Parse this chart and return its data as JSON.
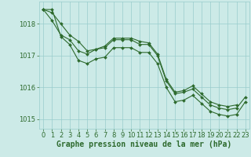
{
  "background_color": "#cceae7",
  "plot_bg_color": "#cceae7",
  "grid_color": "#99cccc",
  "line_color": "#2d6a2d",
  "marker_color": "#2d6a2d",
  "xlabel": "Graphe pression niveau de la mer (hPa)",
  "xlabel_fontsize": 7,
  "tick_fontsize": 6,
  "ylim": [
    1014.7,
    1018.7
  ],
  "xlim": [
    -0.5,
    23.5
  ],
  "yticks": [
    1015,
    1016,
    1017,
    1018
  ],
  "xticks": [
    0,
    1,
    2,
    3,
    4,
    5,
    6,
    7,
    8,
    9,
    10,
    11,
    12,
    13,
    14,
    15,
    16,
    17,
    18,
    19,
    20,
    21,
    22,
    23
  ],
  "series1_x": [
    0,
    1,
    2,
    3,
    4,
    5,
    6,
    7,
    8,
    9,
    10,
    11,
    12,
    13,
    14,
    15,
    16,
    17,
    18,
    19,
    20,
    21,
    22
  ],
  "series1_y": [
    1018.45,
    1018.35,
    1018.0,
    1017.65,
    1017.45,
    1017.15,
    1017.2,
    1017.3,
    1017.55,
    1017.55,
    1017.55,
    1017.45,
    1017.4,
    1017.05,
    1016.25,
    1015.85,
    1015.9,
    1016.05,
    1015.8,
    1015.55,
    1015.45,
    1015.4,
    1015.45
  ],
  "series2_x": [
    0,
    1,
    2,
    3,
    4,
    5,
    6,
    7,
    8,
    9,
    10,
    11,
    12,
    13,
    14,
    15,
    16,
    17,
    18,
    19,
    20,
    21,
    22,
    23
  ],
  "series2_y": [
    1018.45,
    1018.1,
    1017.65,
    1017.5,
    1017.15,
    1017.05,
    1017.2,
    1017.25,
    1017.5,
    1017.5,
    1017.5,
    1017.35,
    1017.35,
    1017.0,
    1016.2,
    1015.8,
    1015.85,
    1015.95,
    1015.7,
    1015.45,
    1015.35,
    1015.3,
    1015.35,
    1015.7
  ],
  "series3_x": [
    0,
    1,
    2,
    3,
    4,
    5,
    6,
    7,
    8,
    9,
    10,
    11,
    12,
    13,
    14,
    15,
    16,
    17,
    18,
    19,
    20,
    21,
    22,
    23
  ],
  "series3_y": [
    1018.45,
    1018.45,
    1017.6,
    1017.35,
    1016.85,
    1016.75,
    1016.9,
    1016.95,
    1017.25,
    1017.25,
    1017.25,
    1017.1,
    1017.1,
    1016.75,
    1016.0,
    1015.55,
    1015.6,
    1015.75,
    1015.5,
    1015.25,
    1015.15,
    1015.1,
    1015.15,
    1015.55
  ]
}
